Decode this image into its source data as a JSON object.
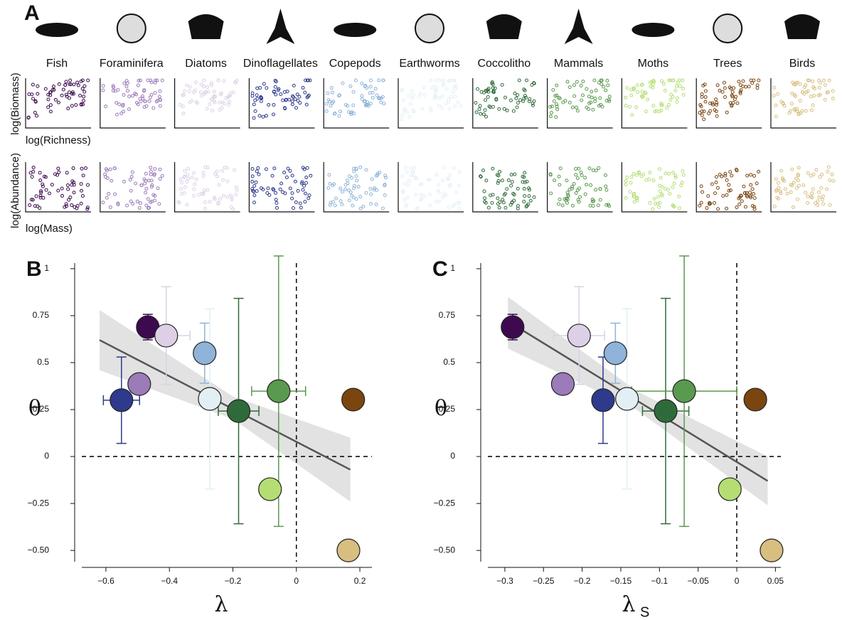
{
  "chart_data": [
    {
      "type": "small-multiples",
      "panel_label": "A",
      "categories": [
        "Fish",
        "Foraminifera",
        "Diatoms",
        "Dinoflagellates",
        "Copepods",
        "Earthworms",
        "Coccolitho",
        "Mammals",
        "Moths",
        "Trees",
        "Birds"
      ],
      "colors": [
        "#3d0a4f",
        "#9b7bb8",
        "#ddd0e6",
        "#2e3a8c",
        "#8fb3d9",
        "#e2eff5",
        "#2f6b3a",
        "#5a9a4f",
        "#b4de74",
        "#7b4510",
        "#d8bf80"
      ],
      "row1_ylabel": "log(Biomass)",
      "row1_xlabel": "log(Richness)",
      "row2_ylabel": "log(Abundance)",
      "row2_xlabel": "log(Mass)"
    },
    {
      "type": "scatter",
      "panel_label": "B",
      "xlabel": "λ",
      "ylabel": "θ",
      "x": [
        -0.468,
        -0.495,
        -0.41,
        -0.551,
        -0.289,
        -0.273,
        -0.182,
        -0.056,
        -0.083,
        0.179,
        0.164
      ],
      "y": [
        0.689,
        0.386,
        0.644,
        0.3,
        0.55,
        0.307,
        0.242,
        0.348,
        -0.174,
        0.303,
        -0.5
      ],
      "xerr": [
        null,
        null,
        0.075,
        0.057,
        null,
        null,
        0.064,
        0.085,
        null,
        null,
        null
      ],
      "yerr": [
        0.068,
        null,
        0.26,
        0.23,
        0.16,
        0.48,
        0.6,
        0.72,
        null,
        null,
        null
      ],
      "fit": {
        "x": [
          -0.62,
          0.17
        ],
        "y": [
          0.62,
          -0.07
        ]
      },
      "band": {
        "x": [
          -0.62,
          -0.2,
          0.17
        ],
        "lower": [
          0.46,
          0.2,
          -0.24
        ],
        "upper": [
          0.78,
          0.32,
          0.1
        ]
      },
      "hline": 0,
      "vline": 0,
      "xlim": [
        -0.676,
        0.238
      ],
      "ylim": [
        -0.56,
        1.03
      ],
      "xticks": [
        {
          "value": -0.6,
          "label": "−0.6"
        },
        {
          "value": -0.4,
          "label": "−0.4"
        },
        {
          "value": -0.2,
          "label": "−0.2"
        },
        0,
        0.2
      ],
      "yticks": [
        {
          "value": -0.5,
          "label": "−0.50"
        },
        {
          "value": -0.25,
          "label": "−0.25"
        },
        0,
        0.25,
        0.5,
        0.75,
        1
      ]
    },
    {
      "type": "scatter",
      "panel_label": "C",
      "xlabel": "λ",
      "xlabel_sub": "S",
      "ylabel": "θ",
      "x": [
        -0.29,
        -0.225,
        -0.204,
        -0.173,
        -0.157,
        -0.142,
        -0.092,
        -0.068,
        -0.009,
        0.024,
        0.045
      ],
      "y": [
        0.689,
        0.386,
        0.644,
        0.3,
        0.55,
        0.307,
        0.242,
        0.348,
        -0.174,
        0.303,
        -0.5
      ],
      "xerr": [
        null,
        null,
        0.033,
        null,
        null,
        null,
        0.03,
        0.068,
        null,
        null,
        null
      ],
      "yerr": [
        0.068,
        null,
        0.26,
        0.23,
        0.16,
        0.48,
        0.6,
        0.72,
        null,
        null,
        null
      ],
      "fit": {
        "x": [
          -0.296,
          0.04
        ],
        "y": [
          0.72,
          -0.13
        ]
      },
      "band": {
        "x": [
          -0.296,
          -0.13,
          0.04
        ],
        "lower": [
          0.575,
          0.25,
          -0.26
        ],
        "upper": [
          0.85,
          0.35,
          0.0
        ]
      },
      "hline": 0,
      "vline": 0,
      "xlim": [
        -0.322,
        0.057
      ],
      "ylim": [
        -0.56,
        1.03
      ],
      "xticks": [
        {
          "value": -0.3,
          "label": "−0.3"
        },
        {
          "value": -0.25,
          "label": "−0.25"
        },
        {
          "value": -0.2,
          "label": "−0.2"
        },
        {
          "value": -0.15,
          "label": "−0.15"
        },
        {
          "value": -0.1,
          "label": "−0.1"
        },
        {
          "value": -0.05,
          "label": "−0.05"
        },
        0,
        0.05
      ],
      "yticks": [
        {
          "value": -0.5,
          "label": "−0.50"
        },
        {
          "value": -0.25,
          "label": "−0.25"
        },
        0,
        0.25,
        0.5,
        0.75,
        1
      ]
    }
  ]
}
